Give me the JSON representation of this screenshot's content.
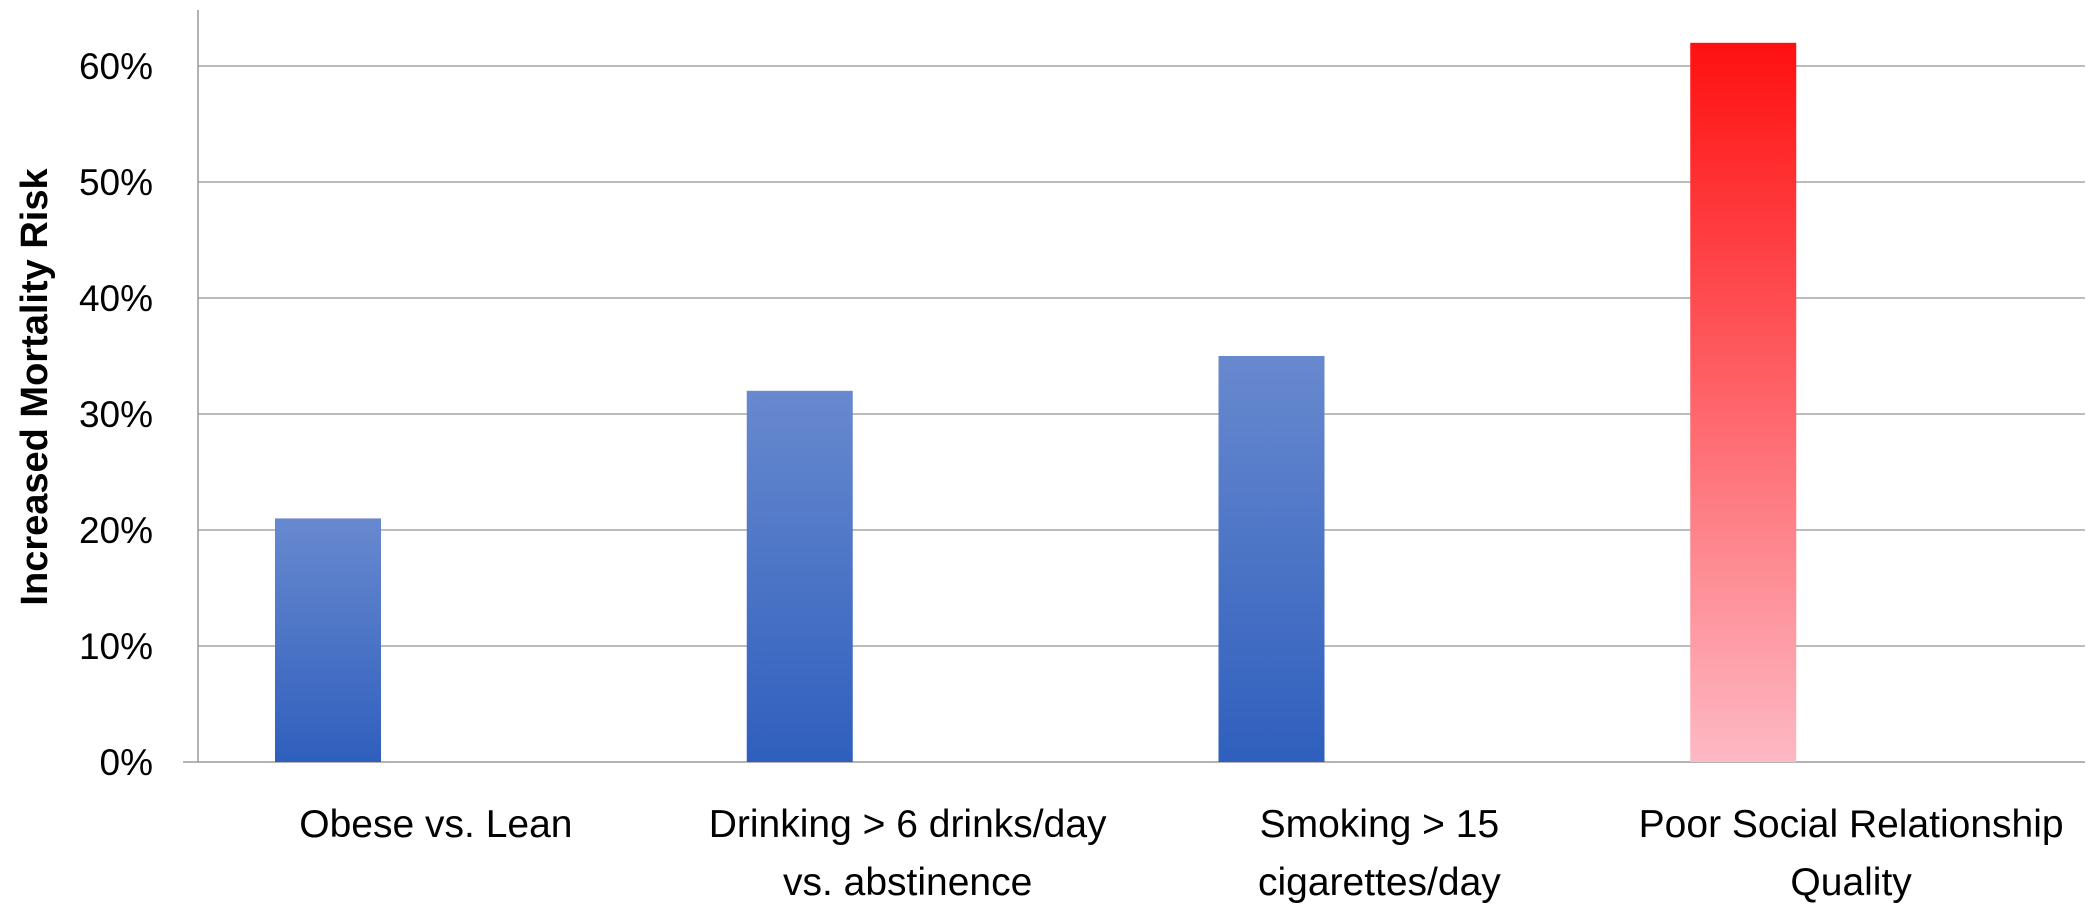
{
  "chart_data": {
    "type": "bar",
    "ylabel": "Increased Mortality Risk",
    "categories": [
      [
        "Obese vs. Lean"
      ],
      [
        "Drinking > 6 drinks/day",
        "vs. abstinence"
      ],
      [
        "Smoking > 15",
        "cigarettes/day"
      ],
      [
        "Poor Social Relationship",
        "Quality"
      ]
    ],
    "values": [
      0.21,
      0.32,
      0.35,
      0.62
    ],
    "ylim": [
      0,
      0.6
    ],
    "yticks": [
      {
        "value": 0.0,
        "label": "0%"
      },
      {
        "value": 0.1,
        "label": "10%"
      },
      {
        "value": 0.2,
        "label": "20%"
      },
      {
        "value": 0.3,
        "label": "30%"
      },
      {
        "value": 0.4,
        "label": "40%"
      },
      {
        "value": 0.5,
        "label": "50%"
      },
      {
        "value": 0.6,
        "label": "60%"
      }
    ],
    "grid": true,
    "bar_colors": [
      {
        "top": "#6889cf",
        "bottom": "#2f5fbd"
      },
      {
        "top": "#6889cf",
        "bottom": "#2f5fbd"
      },
      {
        "top": "#6889cf",
        "bottom": "#2f5fbd"
      },
      {
        "top": "#ff1010",
        "bottom": "#fdb9c4"
      }
    ]
  }
}
